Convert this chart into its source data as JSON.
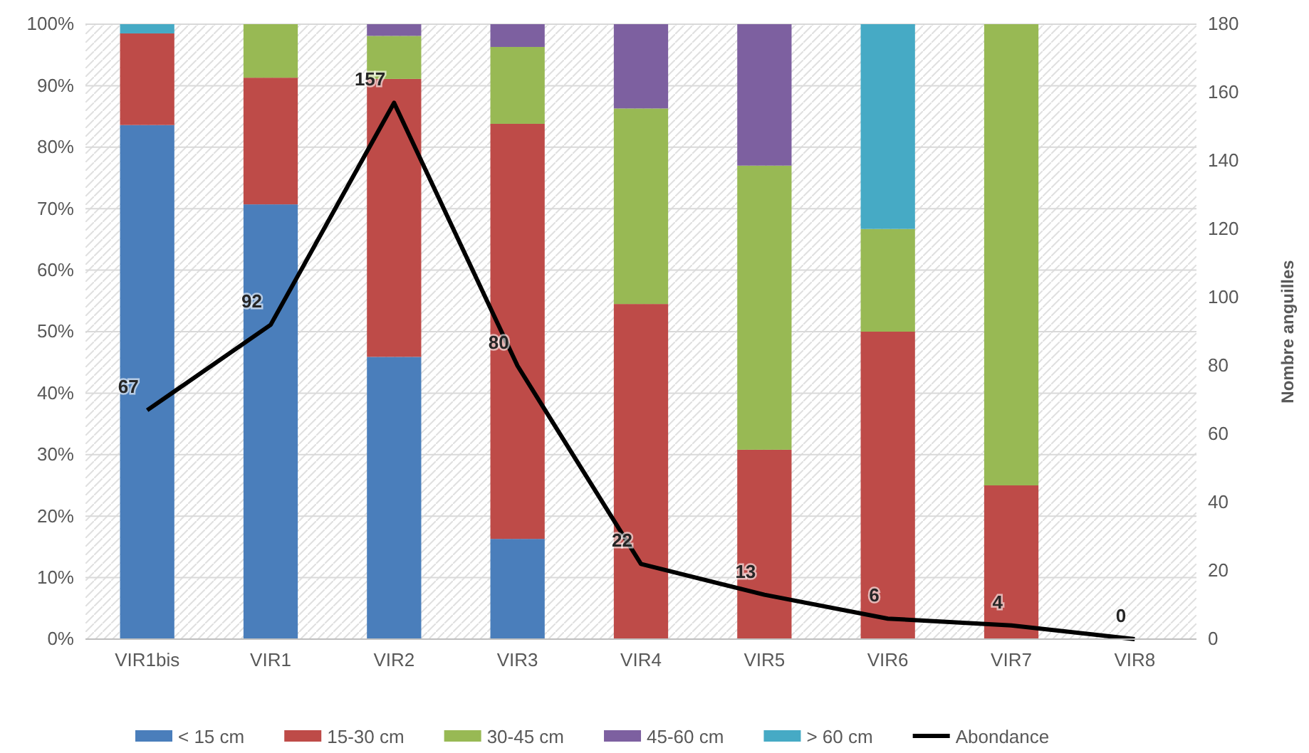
{
  "chart_data": {
    "type": "bar",
    "stacked": true,
    "y2label": "Nombre anguilles",
    "categories": [
      "VIR1bis",
      "VIR1",
      "VIR2",
      "VIR3",
      "VIR4",
      "VIR5",
      "VIR6",
      "VIR7",
      "VIR8"
    ],
    "series": [
      {
        "name": "< 15 cm",
        "color": "#4a7ebb",
        "values": [
          83.6,
          70.7,
          45.9,
          16.3,
          0,
          0,
          0,
          0,
          0
        ]
      },
      {
        "name": "15-30 cm",
        "color": "#be4b48",
        "values": [
          14.9,
          20.6,
          45.2,
          67.5,
          54.5,
          30.8,
          50,
          25,
          0
        ]
      },
      {
        "name": "30-45 cm",
        "color": "#98b954",
        "values": [
          0,
          8.7,
          7.0,
          12.5,
          31.8,
          46.2,
          16.7,
          75,
          0
        ]
      },
      {
        "name": "45-60 cm",
        "color": "#7d60a0",
        "values": [
          0,
          0,
          1.9,
          3.7,
          13.7,
          23.0,
          0,
          0,
          0
        ]
      },
      {
        "name": "> 60 cm",
        "color": "#46aac5",
        "values": [
          1.5,
          0,
          0,
          0,
          0,
          0,
          33.3,
          0,
          0
        ]
      },
      {
        "name": "Abondance",
        "type": "line",
        "axis": "y2",
        "color": "#000000",
        "marker": "none",
        "data_labels": true,
        "values": [
          67,
          92,
          157,
          80,
          22,
          13,
          6,
          4,
          0
        ]
      }
    ],
    "ylim": [
      0,
      100
    ],
    "yticks": [
      {
        "value": 0,
        "label": "0%"
      },
      {
        "value": 10,
        "label": "10%"
      },
      {
        "value": 20,
        "label": "20%"
      },
      {
        "value": 30,
        "label": "30%"
      },
      {
        "value": 40,
        "label": "40%"
      },
      {
        "value": 50,
        "label": "50%"
      },
      {
        "value": 60,
        "label": "60%"
      },
      {
        "value": 70,
        "label": "70%"
      },
      {
        "value": 80,
        "label": "80%"
      },
      {
        "value": 90,
        "label": "90%"
      },
      {
        "value": 100,
        "label": "100%"
      }
    ],
    "y2lim": [
      0,
      180
    ],
    "y2ticks": [
      0,
      20,
      40,
      60,
      80,
      100,
      120,
      140,
      160,
      180
    ],
    "grid": "y",
    "legend": "bottom"
  }
}
